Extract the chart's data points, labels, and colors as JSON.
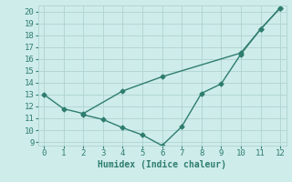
{
  "line1_x": [
    0,
    1,
    2,
    4,
    6,
    10,
    11,
    12
  ],
  "line1_y": [
    13.0,
    11.8,
    11.4,
    13.3,
    14.5,
    16.5,
    18.5,
    20.3
  ],
  "line2_x": [
    2,
    3,
    4,
    5,
    6,
    7,
    8,
    9,
    10,
    11,
    12
  ],
  "line2_y": [
    11.3,
    10.9,
    10.2,
    9.6,
    8.7,
    10.3,
    13.1,
    13.9,
    16.4,
    18.5,
    20.3
  ],
  "line_color": "#2e7d6e",
  "bg_color": "#ceecea",
  "grid_color": "#aed4d0",
  "xlabel": "Humidex (Indice chaleur)",
  "xlim": [
    -0.3,
    12.3
  ],
  "ylim": [
    8.7,
    20.5
  ],
  "yticks": [
    9,
    10,
    11,
    12,
    13,
    14,
    15,
    16,
    17,
    18,
    19,
    20
  ],
  "xticks": [
    0,
    1,
    2,
    3,
    4,
    5,
    6,
    7,
    8,
    9,
    10,
    11,
    12
  ],
  "xlabel_fontsize": 7,
  "tick_fontsize": 6.5,
  "marker": "D",
  "markersize": 2.5,
  "linewidth": 1.0
}
